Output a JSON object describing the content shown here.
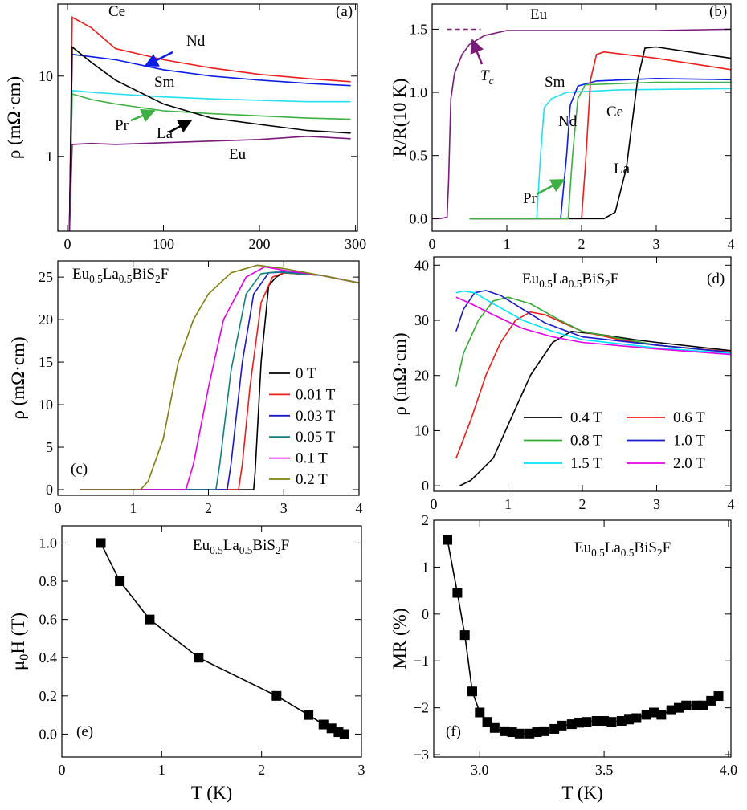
{
  "chart_data": [
    {
      "type": "line",
      "panel": "(a)",
      "ylabel": "ρ (mΩ·cm)",
      "log_y": true,
      "legend": "inline",
      "xlim": [
        -10,
        302
      ],
      "ylim": [
        0.117,
        79
      ],
      "xticks": [
        0,
        100,
        200,
        300
      ],
      "yticks": [
        1,
        10
      ],
      "series": [
        {
          "name": "Ce",
          "color": "#ee1c1c",
          "x": [
            2,
            5,
            25,
            50,
            100,
            150,
            200,
            250,
            295
          ],
          "values": [
            0.1,
            54,
            40,
            22,
            16,
            12.6,
            10.5,
            9.3,
            8.5
          ]
        },
        {
          "name": "Nd",
          "color": "#0a1ee6",
          "x": [
            2,
            5,
            25,
            50,
            100,
            150,
            200,
            250,
            295
          ],
          "values": [
            0.1,
            18.6,
            17.4,
            16,
            12,
            10,
            8.9,
            8.1,
            7.6
          ]
        },
        {
          "name": "Sm",
          "color": "#22e0f0",
          "x": [
            2,
            5,
            25,
            50,
            100,
            150,
            200,
            250,
            295
          ],
          "values": [
            0.1,
            6.6,
            6.3,
            6,
            5.5,
            5.2,
            5,
            4.8,
            4.8
          ]
        },
        {
          "name": "Pr",
          "color": "#3cb043",
          "x": [
            2,
            5,
            25,
            50,
            100,
            150,
            200,
            250,
            295
          ],
          "values": [
            0.1,
            6,
            5.1,
            4.5,
            3.7,
            3.4,
            3.2,
            3,
            2.9
          ]
        },
        {
          "name": "La",
          "color": "#000000",
          "x": [
            2,
            5,
            25,
            50,
            100,
            150,
            200,
            250,
            295
          ],
          "values": [
            0.1,
            23,
            14.8,
            8.9,
            4.5,
            3,
            2.5,
            2.1,
            1.95
          ]
        },
        {
          "name": "Eu",
          "color": "#7a1a7a",
          "x": [
            2,
            5,
            25,
            50,
            100,
            150,
            200,
            250,
            295
          ],
          "values": [
            0.1,
            1.41,
            1.45,
            1.41,
            1.48,
            1.55,
            1.62,
            1.78,
            1.66
          ]
        }
      ]
    },
    {
      "type": "line",
      "panel": "(b)",
      "ylabel": "R/R(10 K)",
      "legend": "inline",
      "annotation": [
        "T",
        "c"
      ],
      "xlim": [
        0,
        4
      ],
      "ylim": [
        -0.1,
        1.7
      ],
      "xticks": [
        0,
        1,
        2,
        3,
        4
      ],
      "yticks": [
        {
          "value": 0,
          "label": "0.0"
        },
        0.5,
        {
          "value": 1,
          "label": "1.0"
        },
        1.5
      ],
      "series": [
        {
          "name": "Eu",
          "color": "#7a1a7a",
          "x": [
            0,
            0.1,
            0.2,
            0.22,
            0.25,
            0.3,
            0.4,
            0.5,
            0.7,
            1,
            2,
            3,
            4
          ],
          "values": [
            0,
            0,
            0.01,
            0.3,
            0.95,
            1.15,
            1.3,
            1.38,
            1.45,
            1.49,
            1.49,
            1.49,
            1.5
          ]
        },
        {
          "name": "Sm",
          "color": "#22e0f0",
          "x": [
            0.5,
            1.4,
            1.45,
            1.5,
            1.6,
            1.8,
            2.5,
            4
          ],
          "values": [
            0,
            0,
            0.5,
            0.88,
            0.95,
            1,
            1.02,
            1.03
          ]
        },
        {
          "name": "Nd",
          "color": "#0a1ee6",
          "x": [
            0.5,
            1.72,
            1.8,
            1.85,
            1.95,
            2.2,
            3,
            4
          ],
          "values": [
            0,
            0,
            0.5,
            0.9,
            1.05,
            1.09,
            1.11,
            1.1
          ]
        },
        {
          "name": "Ce",
          "color": "#ee1c1c",
          "x": [
            0.5,
            2,
            2.05,
            2.12,
            2.2,
            2.3,
            3,
            4
          ],
          "values": [
            0,
            0,
            0.4,
            1.1,
            1.3,
            1.32,
            1.27,
            1.18
          ]
        },
        {
          "name": "La",
          "color": "#000000",
          "x": [
            0.5,
            2.3,
            2.45,
            2.6,
            2.75,
            2.85,
            3,
            4
          ],
          "values": [
            0,
            0,
            0.05,
            0.4,
            1.1,
            1.35,
            1.36,
            1.27
          ]
        },
        {
          "name": "Pr",
          "color": "#3cb043",
          "x": [
            0.5,
            1.82,
            1.88,
            1.95,
            2.05,
            3,
            4
          ],
          "values": [
            0,
            0,
            0.5,
            0.95,
            1.06,
            1.08,
            1.08
          ]
        }
      ]
    },
    {
      "type": "line",
      "panel": "(c)",
      "title": [
        "Eu",
        "0.5",
        "La",
        "0.5",
        "BiS",
        "2",
        "F"
      ],
      "ylabel": "ρ (mΩ·cm)",
      "legend": "lower right",
      "xlim": [
        0,
        4
      ],
      "ylim": [
        -0.66,
        26.9
      ],
      "xticks": [
        0,
        1,
        2,
        3,
        4
      ],
      "yticks": [
        0,
        5,
        10,
        15,
        20,
        25
      ],
      "series": [
        {
          "name": "0 T",
          "color": "#000000",
          "x": [
            0.3,
            2.6,
            2.62,
            2.7,
            2.8,
            2.9,
            3,
            3.5,
            4
          ],
          "values": [
            0,
            0,
            2,
            15,
            24,
            25,
            25.5,
            25.2,
            24.3
          ]
        },
        {
          "name": "0.01 T",
          "color": "#ee1c1c",
          "x": [
            0.3,
            2.4,
            2.45,
            2.55,
            2.7,
            2.85,
            3,
            3.5,
            4
          ],
          "values": [
            0,
            0,
            3,
            12,
            22,
            25,
            25.5,
            25.2,
            24.3
          ]
        },
        {
          "name": "0.03 T",
          "color": "#1a1acc",
          "x": [
            0.3,
            2.25,
            2.3,
            2.45,
            2.6,
            2.8,
            3,
            3.5,
            4
          ],
          "values": [
            0,
            0,
            3,
            15,
            23,
            25.5,
            25.6,
            25.2,
            24.3
          ]
        },
        {
          "name": "0.05 T",
          "color": "#138080",
          "x": [
            0.3,
            2.1,
            2.15,
            2.3,
            2.5,
            2.7,
            2.9,
            3.5,
            4
          ],
          "values": [
            0,
            0,
            3,
            14,
            23,
            25.4,
            25.6,
            25.2,
            24.3
          ]
        },
        {
          "name": "0.1 T",
          "color": "#e600e6",
          "x": [
            0.3,
            1.7,
            1.8,
            2,
            2.2,
            2.5,
            2.75,
            3,
            3.5,
            4
          ],
          "values": [
            0,
            0,
            3,
            12,
            20,
            25,
            26.2,
            25.8,
            25.2,
            24.3
          ]
        },
        {
          "name": "0.2 T",
          "color": "#7f7f10",
          "x": [
            0.3,
            1.1,
            1.2,
            1.4,
            1.6,
            1.8,
            2,
            2.3,
            2.65,
            3,
            3.5,
            4
          ],
          "values": [
            0,
            0,
            1,
            6,
            15,
            20,
            23,
            25.5,
            26.4,
            26,
            25.2,
            24.3
          ]
        }
      ]
    },
    {
      "type": "line",
      "panel": "(d)",
      "title": [
        "Eu",
        "0.5",
        "La",
        "0.5",
        "BiS",
        "2",
        "F"
      ],
      "ylabel": "ρ (mΩ·cm)",
      "legend": "lower right",
      "xlim": [
        0,
        4
      ],
      "ylim": [
        -1,
        41.5
      ],
      "xticks": [
        0,
        1,
        2,
        3,
        4
      ],
      "yticks": [
        0,
        10,
        20,
        30,
        40
      ],
      "series": [
        {
          "name": "0.4 T",
          "color": "#000000",
          "x": [
            0.35,
            0.5,
            0.8,
            1,
            1.3,
            1.6,
            1.85,
            2.2,
            2.7,
            3,
            4
          ],
          "values": [
            0,
            1,
            5,
            11,
            20,
            26,
            28,
            27.5,
            26.5,
            26,
            24.5
          ]
        },
        {
          "name": "0.6 T",
          "color": "#ee1c1c",
          "x": [
            0.3,
            0.5,
            0.7,
            0.9,
            1.1,
            1.3,
            1.5,
            2,
            2.5,
            3,
            4
          ],
          "values": [
            5,
            12,
            20,
            26,
            30,
            31.5,
            31,
            28,
            26.5,
            25.5,
            24.3
          ]
        },
        {
          "name": "0.8 T",
          "color": "#33aa33",
          "x": [
            0.3,
            0.4,
            0.6,
            0.8,
            1,
            1.3,
            1.7,
            2,
            3,
            4
          ],
          "values": [
            18,
            24,
            30,
            33.5,
            34.2,
            33,
            30,
            28,
            25.5,
            24.2
          ]
        },
        {
          "name": "1.0 T",
          "color": "#1a1acc",
          "x": [
            0.3,
            0.4,
            0.55,
            0.7,
            0.9,
            1.2,
            1.5,
            2,
            3,
            4
          ],
          "values": [
            28,
            32,
            35,
            35.4,
            34.5,
            32,
            29.5,
            27,
            25.5,
            24.2
          ]
        },
        {
          "name": "1.5 T",
          "color": "#00e5ff",
          "x": [
            0.3,
            0.4,
            0.55,
            0.8,
            1.2,
            1.6,
            2,
            3,
            4
          ],
          "values": [
            35,
            35.3,
            35,
            33,
            30,
            28,
            26.5,
            25,
            24
          ]
        },
        {
          "name": "2.0 T",
          "color": "#e600e6",
          "x": [
            0.3,
            0.5,
            0.8,
            1.2,
            1.6,
            2,
            3,
            4
          ],
          "values": [
            34.2,
            33,
            31,
            28.5,
            27,
            26,
            24.8,
            23.8
          ]
        }
      ]
    },
    {
      "type": "line",
      "panel": "(e)",
      "marker": "square",
      "title": [
        "Eu",
        "0.5",
        "La",
        "0.5",
        "BiS",
        "2",
        "F"
      ],
      "ylabel": [
        "μ",
        "0",
        "H (T)"
      ],
      "xlabel": "T (K)",
      "xlim": [
        0,
        3
      ],
      "ylim": [
        -0.12,
        1.09
      ],
      "xticks": [
        0,
        1,
        2,
        3
      ],
      "yticks": [
        {
          "value": 0,
          "label": "0.0"
        },
        0.2,
        0.4,
        0.6,
        0.8,
        {
          "value": 1,
          "label": "1.0"
        }
      ],
      "series": [
        {
          "color": "#000000",
          "x": [
            0.39,
            0.58,
            0.88,
            1.37,
            2.15,
            2.47,
            2.62,
            2.7,
            2.77,
            2.83
          ],
          "values": [
            1,
            0.8,
            0.6,
            0.4,
            0.2,
            0.1,
            0.05,
            0.03,
            0.01,
            0
          ]
        }
      ]
    },
    {
      "type": "line",
      "panel": "(f)",
      "marker": "square",
      "title": [
        "Eu",
        "0.5",
        "La",
        "0.5",
        "BiS",
        "2",
        "F"
      ],
      "ylabel": "MR (%)",
      "xlabel": "T (K)",
      "xlim": [
        2.815,
        4.01
      ],
      "ylim": [
        -3.05,
        2
      ],
      "xticks": [
        {
          "value": 3,
          "label": "3.0"
        },
        3.5,
        {
          "value": 4,
          "label": "4.0"
        }
      ],
      "yticks": [
        {
          "value": -3,
          "label": "−3"
        },
        {
          "value": -2,
          "label": "−2"
        },
        {
          "value": -1,
          "label": "−1"
        },
        0,
        1,
        2
      ],
      "series": [
        {
          "color": "#000000",
          "x": [
            2.87,
            2.91,
            2.94,
            2.97,
            3,
            3.03,
            3.06,
            3.1,
            3.13,
            3.16,
            3.2,
            3.23,
            3.26,
            3.3,
            3.33,
            3.37,
            3.4,
            3.43,
            3.47,
            3.5,
            3.53,
            3.57,
            3.6,
            3.63,
            3.67,
            3.7,
            3.73,
            3.77,
            3.8,
            3.83,
            3.87,
            3.9,
            3.93,
            3.96
          ],
          "values": [
            1.58,
            0.45,
            -0.45,
            -1.65,
            -2.1,
            -2.3,
            -2.43,
            -2.5,
            -2.52,
            -2.55,
            -2.55,
            -2.52,
            -2.5,
            -2.45,
            -2.38,
            -2.35,
            -2.32,
            -2.3,
            -2.28,
            -2.28,
            -2.3,
            -2.28,
            -2.25,
            -2.22,
            -2.15,
            -2.1,
            -2.15,
            -2.05,
            -2,
            -1.95,
            -1.95,
            -1.95,
            -1.85,
            -1.75
          ]
        }
      ]
    }
  ]
}
